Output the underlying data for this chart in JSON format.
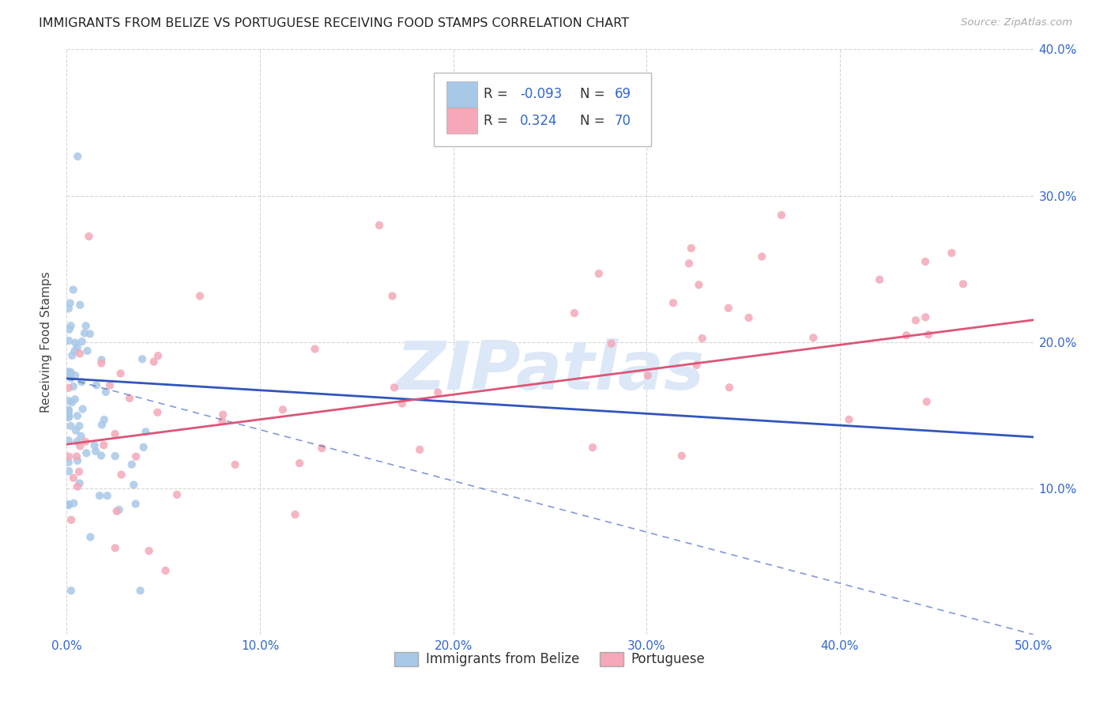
{
  "title": "IMMIGRANTS FROM BELIZE VS PORTUGUESE RECEIVING FOOD STAMPS CORRELATION CHART",
  "source": "Source: ZipAtlas.com",
  "ylabel": "Receiving Food Stamps",
  "xlim": [
    0,
    0.5
  ],
  "ylim": [
    0,
    0.4
  ],
  "xticks": [
    0.0,
    0.1,
    0.2,
    0.3,
    0.4,
    0.5
  ],
  "xticklabels": [
    "0.0%",
    "10.0%",
    "20.0%",
    "30.0%",
    "40.0%",
    "50.0%"
  ],
  "yticks_right": [
    0.1,
    0.2,
    0.3,
    0.4
  ],
  "yticklabels_right": [
    "10.0%",
    "20.0%",
    "30.0%",
    "40.0%"
  ],
  "legend_r_belize": "-0.093",
  "legend_n_belize": "69",
  "legend_r_portuguese": "0.324",
  "legend_n_portuguese": "70",
  "color_belize": "#a8c8e8",
  "color_portuguese": "#f4a8b8",
  "color_belize_line": "#3355bb",
  "color_portuguese_line": "#dd5577",
  "watermark": "ZIPatlas",
  "background_color": "#ffffff",
  "seed": 42,
  "belize_line_start_y": 0.175,
  "belize_line_end_y": 0.135,
  "portuguese_line_start_y": 0.13,
  "portuguese_line_end_y": 0.215
}
